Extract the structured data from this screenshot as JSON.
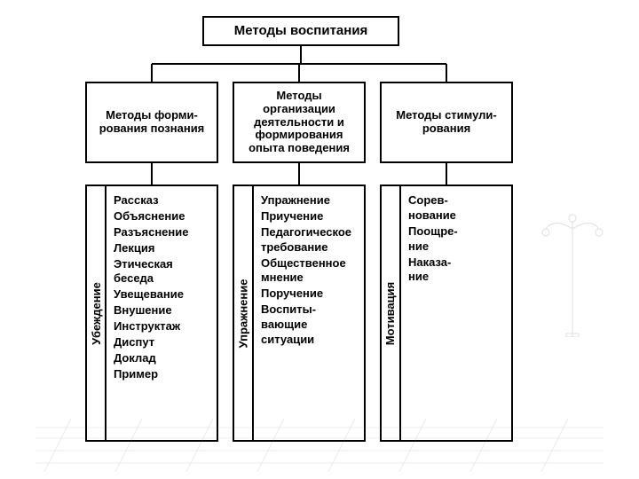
{
  "diagram": {
    "type": "tree",
    "background_color": "#ffffff",
    "border_color": "#000000",
    "line_color": "#000000",
    "root": {
      "title": "Методы воспитания",
      "fontsize": 15,
      "fontweight": "bold"
    },
    "branches": [
      {
        "title": "Методы форми-\nрования познания",
        "vertical_label": "Убеждение",
        "items": [
          "Рассказ",
          "Объяснение",
          "Разъяснение",
          "Лекция",
          "Этическая беседа",
          "Увещевание",
          "Внушение",
          "Инструктаж",
          "Диспут",
          "Доклад",
          "Пример"
        ]
      },
      {
        "title": "Методы организации деятельности и формирования опыта поведения",
        "vertical_label": "Упражнение",
        "items": [
          "Упражнение",
          "Приучение",
          "Педагогическое требование",
          "Общественное мнение",
          "Поручение",
          "Воспиты-\nвающие ситуации"
        ]
      },
      {
        "title": "Методы стимули-\nрования",
        "vertical_label": "Мотивация",
        "items": [
          "Сорев-\nнование",
          "Поощре-\nние",
          "Наказа-\nние"
        ]
      }
    ],
    "mid_fontsize": 13,
    "leaf_fontsize": 13,
    "vlabel_fontsize": 13
  }
}
